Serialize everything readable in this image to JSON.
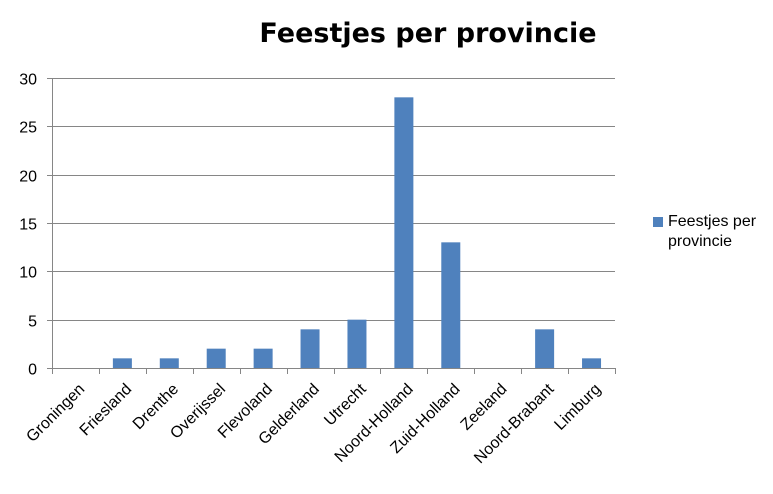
{
  "chart_data": {
    "type": "bar",
    "title": "Feestjes per provincie",
    "xlabel": "",
    "ylabel": "",
    "categories": [
      "Groningen",
      "Friesland",
      "Drenthe",
      "Overijssel",
      "Flevoland",
      "Gelderland",
      "Utrecht",
      "Noord-Holland",
      "Zuid-Holland",
      "Zeeland",
      "Noord-Brabant",
      "Limburg"
    ],
    "series": [
      {
        "name": "Feestjes per provincie",
        "values": [
          0,
          1,
          1,
          2,
          2,
          4,
          5,
          28,
          13,
          0,
          4,
          1
        ],
        "color": "#4F81BD"
      }
    ],
    "ylim": [
      0,
      30
    ],
    "yticks": [
      0,
      5,
      10,
      15,
      20,
      25,
      30
    ],
    "grid": true,
    "legend": {
      "position": "right",
      "lines": [
        "Feestjes per",
        "provincie"
      ]
    }
  }
}
